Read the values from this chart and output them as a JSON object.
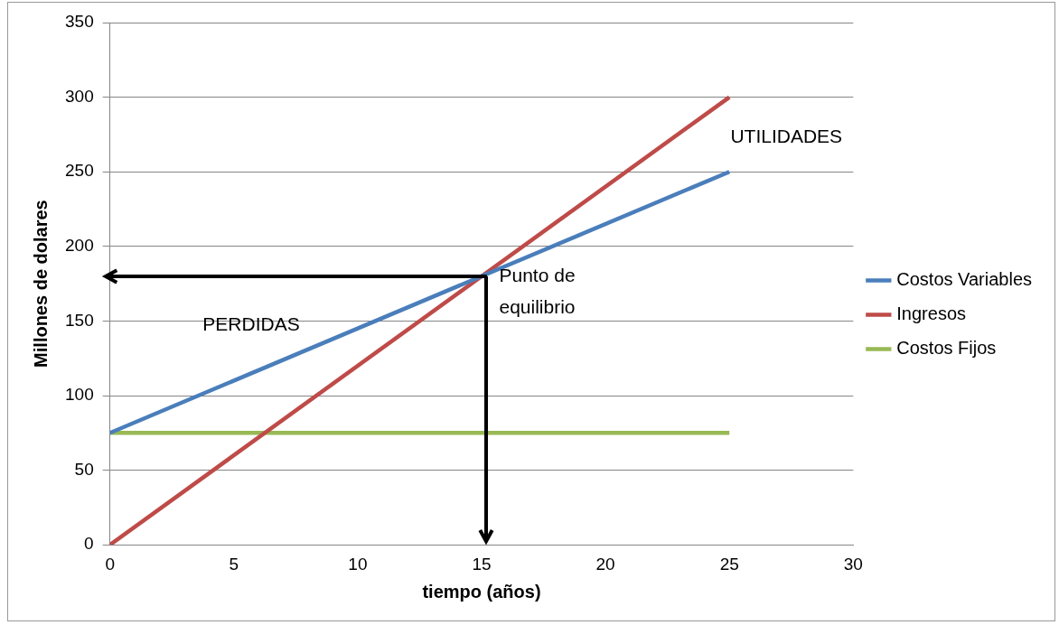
{
  "chart_data": {
    "type": "line",
    "xlabel": "tiempo (años)",
    "ylabel": "Millones de dolares",
    "xlim": [
      0,
      30
    ],
    "xticks": [
      0,
      5,
      10,
      15,
      20,
      25,
      30
    ],
    "ylim": [
      0,
      350
    ],
    "yticks": [
      0,
      50,
      100,
      150,
      200,
      250,
      300,
      350
    ],
    "x": [
      0,
      25
    ],
    "grid": "y",
    "legend": "right",
    "marker": "none",
    "line_style": "solid",
    "series": [
      {
        "name": "Costos Variables",
        "color": "#4a7ebb",
        "values": [
          75,
          250
        ]
      },
      {
        "name": "Ingresos",
        "color": "#be4b48",
        "values": [
          0,
          300
        ]
      },
      {
        "name": "Costos Fijos",
        "color": "#98b954",
        "values": [
          75,
          75
        ]
      }
    ],
    "annotations": [
      {
        "text": "Punto de equilibrio",
        "x": 15.2,
        "y": 180
      },
      "PERDIDAS",
      "UTILIDADES"
    ]
  }
}
